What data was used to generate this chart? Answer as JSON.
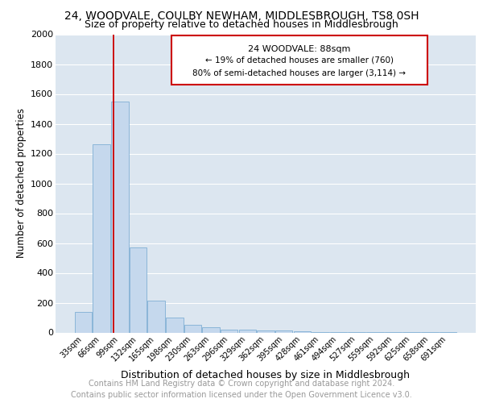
{
  "title": "24, WOODVALE, COULBY NEWHAM, MIDDLESBROUGH, TS8 0SH",
  "subtitle": "Size of property relative to detached houses in Middlesbrough",
  "xlabel": "Distribution of detached houses by size in Middlesbrough",
  "ylabel": "Number of detached properties",
  "categories": [
    "33sqm",
    "66sqm",
    "99sqm",
    "132sqm",
    "165sqm",
    "198sqm",
    "230sqm",
    "263sqm",
    "296sqm",
    "329sqm",
    "362sqm",
    "395sqm",
    "428sqm",
    "461sqm",
    "494sqm",
    "527sqm",
    "559sqm",
    "592sqm",
    "625sqm",
    "658sqm",
    "691sqm"
  ],
  "values": [
    140,
    1260,
    1550,
    570,
    215,
    100,
    50,
    35,
    20,
    20,
    15,
    15,
    10,
    5,
    5,
    5,
    5,
    5,
    5,
    5,
    5
  ],
  "bar_color": "#c5d8ed",
  "bar_edge_color": "#7fafd4",
  "ylim": [
    0,
    2000
  ],
  "yticks": [
    0,
    200,
    400,
    600,
    800,
    1000,
    1200,
    1400,
    1600,
    1800,
    2000
  ],
  "annotation_line1": "24 WOODVALE: 88sqm",
  "annotation_line2": "← 19% of detached houses are smaller (760)",
  "annotation_line3": "80% of semi-detached houses are larger (3,114) →",
  "annotation_box_color": "#cc0000",
  "background_color": "#dce6f0",
  "grid_color": "#ffffff",
  "footer_line1": "Contains HM Land Registry data © Crown copyright and database right 2024.",
  "footer_line2": "Contains public sector information licensed under the Open Government Licence v3.0.",
  "title_fontsize": 10,
  "subtitle_fontsize": 9,
  "ylabel_fontsize": 8.5,
  "xlabel_fontsize": 9,
  "footer_fontsize": 7,
  "tick_label_fontsize": 7,
  "ytick_label_fontsize": 8
}
